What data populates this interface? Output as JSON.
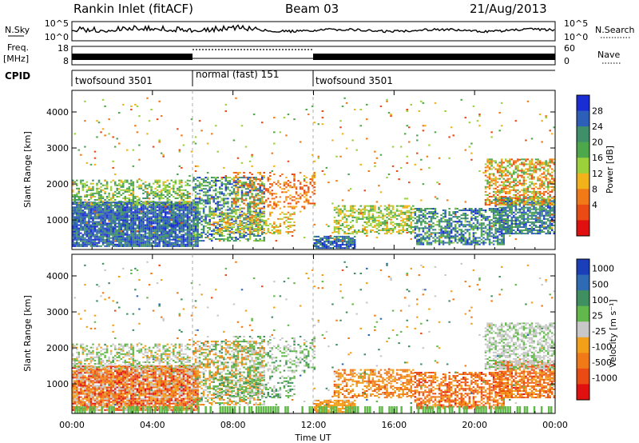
{
  "header": {
    "title": "Rankin Inlet (fitACF)",
    "beam": "Beam 03",
    "date": "21/Aug/2013"
  },
  "noise_panel": {
    "left_label": "N.Sky",
    "right_label": "N.Search",
    "left_ticks": [
      "10^5",
      "10^0"
    ],
    "right_ticks": [
      "10^5",
      "10^0"
    ]
  },
  "freq_panel": {
    "left_label": "Freq.",
    "left_unit": "[MHz]",
    "right_label": "Nave",
    "left_ticks": [
      "18",
      "8"
    ],
    "right_ticks": [
      "60",
      "0"
    ]
  },
  "cpid": {
    "label": "CPID",
    "segments": [
      {
        "name": "twofsound 3501",
        "start_h": 0,
        "end_h": 6
      },
      {
        "name": "normal (fast) 151",
        "start_h": 6,
        "end_h": 12
      },
      {
        "name": "twofsound 3501",
        "start_h": 12,
        "end_h": 24
      }
    ]
  },
  "x_axis": {
    "label": "Time UT",
    "ticks": [
      "00:00",
      "04:00",
      "08:00",
      "12:00",
      "16:00",
      "20:00",
      "00:00"
    ],
    "range_h": [
      0,
      24
    ]
  },
  "chart_data": [
    {
      "type": "heatmap",
      "ylabel": "Slant Range [km]",
      "ylim": [
        180,
        4600
      ],
      "yticks": [
        "1000",
        "2000",
        "3000",
        "4000"
      ],
      "colorbar": {
        "label": "Power [dB]",
        "ticks": [
          "4",
          "8",
          "12",
          "16",
          "20",
          "24",
          "28"
        ],
        "range": [
          0,
          30
        ],
        "colors": [
          "#1a2cd4",
          "#2e5fb8",
          "#3f8f6a",
          "#4ca84a",
          "#9bd23c",
          "#f2b21a",
          "#f07a18",
          "#ea4a14",
          "#e01010"
        ]
      }
    },
    {
      "type": "heatmap",
      "ylabel": "Slant Range [km]",
      "ylim": [
        180,
        4600
      ],
      "yticks": [
        "1000",
        "2000",
        "3000",
        "4000"
      ],
      "colorbar": {
        "label": "Velocity [m s⁻¹]",
        "ticks": [
          "1000",
          "500",
          "100",
          "25",
          "-25",
          "-100",
          "-500",
          "-1000"
        ],
        "colors": [
          "#1a3fb8",
          "#2f6ab4",
          "#3f8f60",
          "#62b84a",
          "#c8c8c8",
          "#f2a01a",
          "#f07a18",
          "#ea4a14",
          "#e01010"
        ]
      }
    }
  ]
}
